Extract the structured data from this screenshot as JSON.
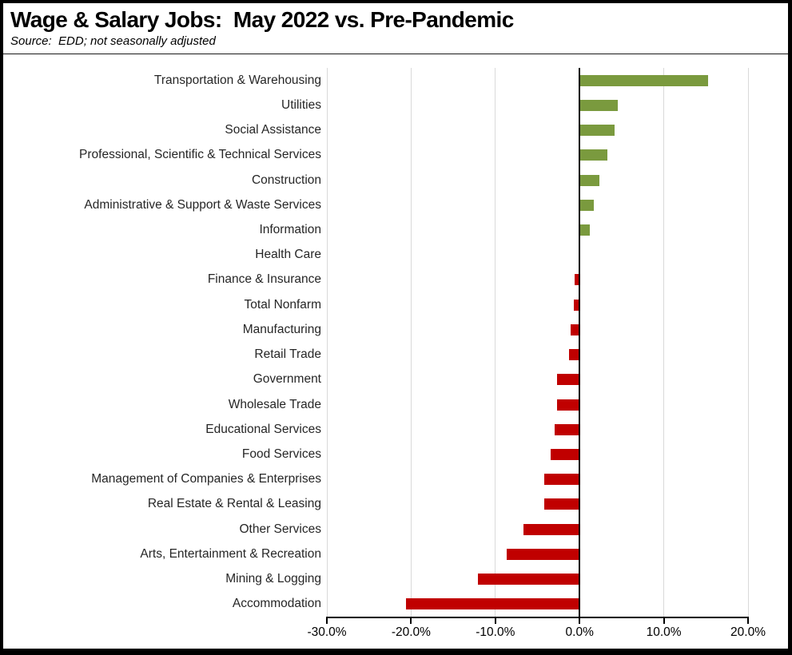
{
  "header": {
    "title": "Wage & Salary Jobs:  May 2022 vs. Pre-Pandemic",
    "source_note": "Source:  EDD; not seasonally adjusted"
  },
  "chart_data": {
    "type": "bar",
    "orientation": "horizontal",
    "title": "Wage & Salary Jobs:  May 2022 vs. Pre-Pandemic",
    "source_note": "Source:  EDD; not seasonally adjusted",
    "unit": "%",
    "categories": [
      "Transportation & Warehousing",
      "Utilities",
      "Social Assistance",
      "Professional, Scientific & Technical Services",
      "Construction",
      "Administrative & Support & Waste Services",
      "Information",
      "Health Care",
      "Finance & Insurance",
      "Total Nonfarm",
      "Manufacturing",
      "Retail Trade",
      "Government",
      "Wholesale Trade",
      "Educational Services",
      "Food Services",
      "Management of Companies & Enterprises",
      "Real Estate & Rental & Leasing",
      "Other Services",
      "Arts, Entertainment & Recreation",
      "Mining & Logging",
      "Accommodation"
    ],
    "values": [
      15.2,
      4.4,
      4.1,
      3.2,
      2.3,
      1.6,
      1.1,
      0.0,
      -0.5,
      -0.6,
      -1.0,
      -1.2,
      -2.6,
      -2.6,
      -2.9,
      -3.3,
      -4.1,
      -4.1,
      -6.6,
      -8.6,
      -12.0,
      -20.5
    ],
    "xlim": [
      -30,
      20
    ],
    "x_tick_values": [
      -30,
      -20,
      -10,
      0,
      10,
      20
    ],
    "x_ticks": [
      "-30.0%",
      "-20.0%",
      "-10.0%",
      "0.0%",
      "10.0%",
      "20.0%"
    ],
    "grid": true,
    "legend": "none",
    "positive_color": "#7a9a3e",
    "negative_color": "#c00000",
    "gridline_color": "#d9d9d9",
    "axis_color": "#000000"
  }
}
